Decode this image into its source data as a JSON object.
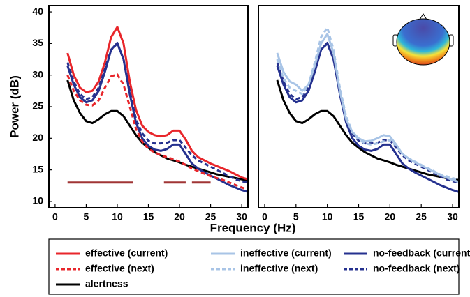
{
  "chart_data": [
    {
      "type": "line",
      "ylabel": "Power (dB)",
      "xlabel": "Frequency (Hz)",
      "xlim": [
        -1,
        31
      ],
      "ylim": [
        9,
        41
      ],
      "xticks": [
        0,
        5,
        10,
        15,
        20,
        25,
        30
      ],
      "yticks": [
        10,
        15,
        20,
        25,
        30,
        35,
        40
      ],
      "x": [
        2,
        3,
        4,
        5,
        6,
        7,
        8,
        9,
        10,
        11,
        12,
        13,
        14,
        15,
        16,
        17,
        18,
        19,
        20,
        21,
        22,
        23,
        24,
        25,
        26,
        27,
        28,
        29,
        30,
        31
      ],
      "series": [
        {
          "name": "effective (current)",
          "color": "#e8262b",
          "dash": false,
          "values": [
            33.5,
            30,
            28,
            27.3,
            27.5,
            29,
            32,
            36,
            37.6,
            35,
            29,
            24.5,
            22,
            21,
            20.5,
            20.3,
            20.5,
            21.2,
            21.2,
            19.8,
            18,
            17,
            16.5,
            16,
            15.6,
            15.2,
            14.8,
            14.3,
            13.8,
            13.5
          ]
        },
        {
          "name": "effective (next)",
          "color": "#e8262b",
          "dash": true,
          "values": [
            30,
            27.5,
            26,
            25.3,
            25.2,
            26,
            28,
            29.8,
            30.1,
            28.5,
            25,
            21.5,
            19.5,
            18.3,
            17.8,
            17.3,
            17,
            16.7,
            16.3,
            15.8,
            15.2,
            14.8,
            14.4,
            14,
            13.7,
            13.4,
            13,
            12.6,
            12.2,
            11.9
          ]
        },
        {
          "name": "no-feedback (current)",
          "color": "#25318f",
          "dash": false,
          "values": [
            31.5,
            28.5,
            26.5,
            25.7,
            26,
            27.5,
            30.5,
            34,
            35.1,
            32.5,
            27,
            22.5,
            20,
            18.8,
            18.2,
            18,
            18.3,
            19,
            19,
            17.5,
            16,
            15.2,
            14.6,
            14.1,
            13.6,
            13.1,
            12.6,
            12.2,
            11.8,
            11.5
          ]
        },
        {
          "name": "no-feedback (next)",
          "color": "#25318f",
          "dash": true,
          "values": [
            32,
            29,
            27,
            26.2,
            26.5,
            28,
            31,
            34,
            35,
            32.5,
            27.5,
            23,
            20.8,
            19.6,
            19.2,
            19.2,
            19.3,
            19.7,
            19.7,
            18.5,
            17.3,
            16.5,
            16,
            15.5,
            15,
            14.5,
            14,
            13.5,
            13.2,
            13
          ]
        },
        {
          "name": "alertness",
          "color": "#000000",
          "dash": false,
          "values": [
            29.2,
            26,
            24,
            22.7,
            22.4,
            23,
            23.8,
            24.3,
            24.3,
            23.5,
            22,
            20.5,
            19.3,
            18.5,
            17.8,
            17.3,
            16.8,
            16.5,
            16.2,
            15.8,
            15.5,
            15.2,
            14.9,
            14.6,
            14.3,
            14.1,
            13.9,
            13.7,
            13.5,
            13.4
          ]
        }
      ],
      "significance": {
        "y": 13,
        "color": "#a03535",
        "ranges": [
          [
            2,
            12.5
          ],
          [
            17.5,
            21
          ],
          [
            22,
            25
          ]
        ]
      }
    },
    {
      "type": "line",
      "xlim": [
        -1,
        31
      ],
      "ylim": [
        9,
        41
      ],
      "xticks": [
        0,
        5,
        10,
        15,
        20,
        25,
        30
      ],
      "x": [
        2,
        3,
        4,
        5,
        6,
        7,
        8,
        9,
        10,
        11,
        12,
        13,
        14,
        15,
        16,
        17,
        18,
        19,
        20,
        21,
        22,
        23,
        24,
        25,
        26,
        27,
        28,
        29,
        30,
        31
      ],
      "series": [
        {
          "name": "ineffective (current)",
          "color": "#a8c4e6",
          "dash": false,
          "values": [
            33.5,
            30.5,
            29,
            28.5,
            27.5,
            28.5,
            31.5,
            35,
            36.5,
            33.5,
            27.5,
            23,
            21,
            20,
            19.5,
            19.6,
            20,
            20.5,
            20.3,
            19,
            17.5,
            16.8,
            16.2,
            15.7,
            15.2,
            14.7,
            14.2,
            13.8,
            13.4,
            13.1
          ]
        },
        {
          "name": "ineffective (next)",
          "color": "#a8c4e6",
          "dash": true,
          "values": [
            32.5,
            29.5,
            28,
            27.5,
            27,
            28.5,
            32,
            36,
            37.5,
            34,
            28,
            23.5,
            21,
            19.8,
            19.2,
            19,
            19.2,
            19.5,
            19.7,
            18.8,
            17.5,
            16.8,
            16.3,
            15.8,
            15.3,
            14.8,
            14.3,
            14,
            13.7,
            13.4
          ]
        },
        {
          "name": "no-feedback (current)",
          "color": "#25318f",
          "dash": false,
          "values": [
            31.5,
            28.5,
            26.5,
            25.7,
            26,
            27.5,
            30.5,
            34,
            35.1,
            32.5,
            27,
            22.5,
            20,
            18.8,
            18.2,
            18,
            18.3,
            19,
            19,
            17.5,
            16,
            15.2,
            14.6,
            14.1,
            13.6,
            13.1,
            12.6,
            12.2,
            11.8,
            11.5
          ]
        },
        {
          "name": "no-feedback (next)",
          "color": "#25318f",
          "dash": true,
          "values": [
            32,
            29,
            27,
            26.2,
            26.5,
            28,
            31,
            34,
            35,
            32.5,
            27.5,
            23,
            20.8,
            19.6,
            19.2,
            19.2,
            19.3,
            19.7,
            19.7,
            18.5,
            17.3,
            16.5,
            16,
            15.5,
            15,
            14.5,
            14,
            13.5,
            13.2,
            13
          ]
        },
        {
          "name": "alertness",
          "color": "#000000",
          "dash": false,
          "values": [
            29.2,
            26,
            24,
            22.7,
            22.4,
            23,
            23.8,
            24.3,
            24.3,
            23.5,
            22,
            20.5,
            19.3,
            18.5,
            17.8,
            17.3,
            16.8,
            16.5,
            16.2,
            15.8,
            15.5,
            15.2,
            14.9,
            14.6,
            14.3,
            14.1,
            13.9,
            13.7,
            13.5,
            13.4
          ]
        }
      ]
    }
  ]
}
